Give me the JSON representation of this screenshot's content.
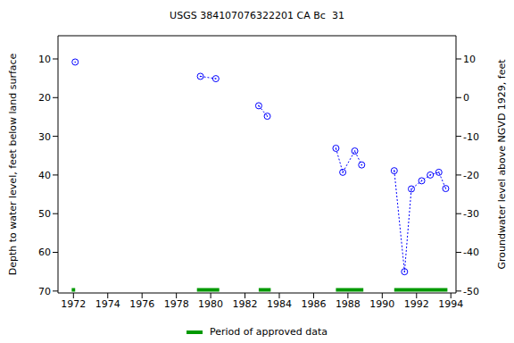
{
  "chart_data": {
    "type": "line",
    "title": "USGS 384107076322201 CA Bc  31",
    "y_label": "Depth to water level, feet below land surface",
    "y2_label": "Groundwater level above NGVD 1929, feet",
    "xlim": [
      1971.1,
      1994.3
    ],
    "xticks": [
      1972,
      1974,
      1976,
      1978,
      1980,
      1982,
      1984,
      1986,
      1988,
      1990,
      1992,
      1994
    ],
    "ylim": [
      70.5,
      4
    ],
    "yticks": [
      10,
      20,
      30,
      40,
      50,
      60,
      70
    ],
    "y2lim": [
      -50.5,
      16
    ],
    "y2ticks": [
      10,
      0,
      -10,
      -20,
      -30,
      -40,
      -50
    ],
    "legend": "bottom",
    "series": [
      {
        "color": "#0000ff",
        "marker": "circle",
        "line_style": "dotted",
        "x": [
          1972.1,
          1976,
          1979.4,
          1980.3,
          1981.5,
          1982.8,
          1983.3,
          1985,
          1987.3,
          1987.7,
          1988.4,
          1988.8,
          1989.8,
          1990.7,
          1991.3,
          1991.7,
          1992.3,
          1992.8,
          1993.3,
          1993.7
        ],
        "values": [
          10.8,
          null,
          14.5,
          15.1,
          null,
          22.1,
          24.8,
          null,
          33.1,
          39.3,
          33.8,
          37.4,
          null,
          38.9,
          65.0,
          43.6,
          41.5,
          40.0,
          39.3,
          43.5
        ]
      },
      {
        "name": "Period of approved data",
        "type": "line",
        "color": "#009900",
        "line_style": "solid",
        "x": [
          1971.9,
          1972.1,
          1975,
          1979.2,
          1980.5,
          1981.5,
          1982.8,
          1983.5,
          1985,
          1987.3,
          1988.9,
          1989.8,
          1990.7,
          1993.8
        ],
        "values": [
          69.7,
          69.7,
          null,
          69.7,
          69.7,
          null,
          69.7,
          69.7,
          null,
          69.7,
          69.7,
          null,
          69.7,
          69.7
        ]
      }
    ]
  }
}
